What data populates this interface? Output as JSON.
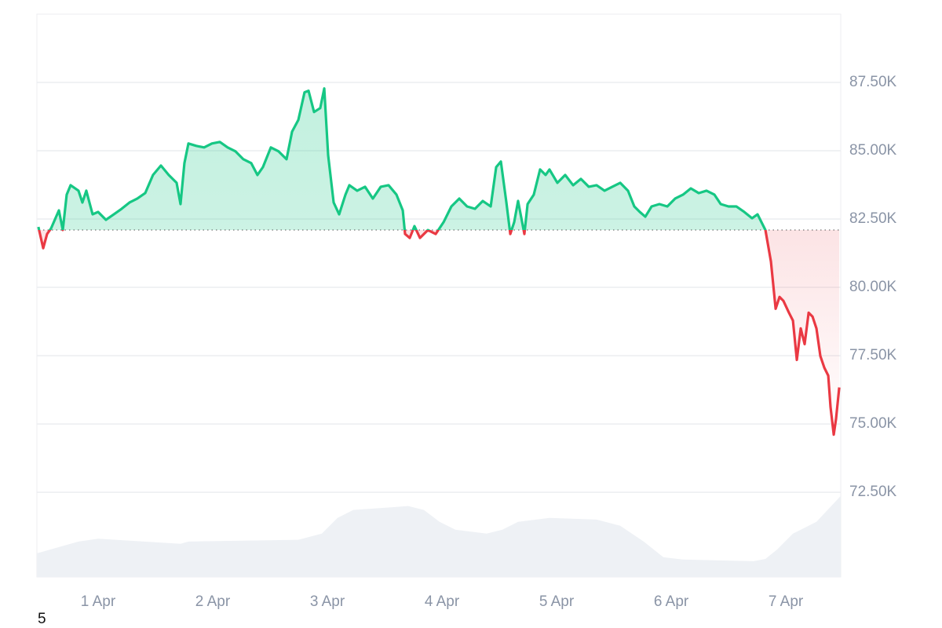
{
  "chart_data": {
    "type": "line",
    "x": [
      0.479,
      0.521,
      0.555,
      0.589,
      0.658,
      0.692,
      0.726,
      0.76,
      0.829,
      0.863,
      0.897,
      0.952,
      1,
      1.068,
      1.137,
      1.205,
      1.274,
      1.342,
      1.411,
      1.479,
      1.548,
      1.616,
      1.685,
      1.719,
      1.753,
      1.788,
      1.856,
      1.925,
      1.993,
      2.062,
      2.13,
      2.199,
      2.267,
      2.336,
      2.39,
      2.438,
      2.507,
      2.575,
      2.644,
      2.692,
      2.747,
      2.801,
      2.836,
      2.884,
      2.938,
      2.973,
      3.007,
      3.055,
      3.103,
      3.158,
      3.192,
      3.26,
      3.329,
      3.397,
      3.466,
      3.534,
      3.603,
      3.658,
      3.678,
      3.719,
      3.76,
      3.808,
      3.877,
      3.945,
      4.014,
      4.082,
      4.151,
      4.219,
      4.288,
      4.356,
      4.425,
      4.473,
      4.514,
      4.562,
      4.596,
      4.63,
      4.664,
      4.719,
      4.747,
      4.801,
      4.856,
      4.904,
      4.938,
      5.007,
      5.075,
      5.144,
      5.212,
      5.281,
      5.349,
      5.418,
      5.486,
      5.555,
      5.623,
      5.678,
      5.726,
      5.774,
      5.829,
      5.897,
      5.966,
      6.034,
      6.103,
      6.171,
      6.24,
      6.308,
      6.377,
      6.432,
      6.5,
      6.568,
      6.637,
      6.705,
      6.753,
      6.822,
      6.87,
      6.911,
      6.945,
      6.979,
      7.027,
      7.062,
      7.096,
      7.13,
      7.164,
      7.199,
      7.233,
      7.267,
      7.301,
      7.336,
      7.37,
      7.39,
      7.418,
      7.438,
      7.466
    ],
    "values": [
      82212,
      81434,
      81953,
      82154,
      82817,
      82100,
      83393,
      83738,
      83537,
      83105,
      83537,
      82673,
      82760,
      82471,
      82673,
      82874,
      83105,
      83249,
      83450,
      84113,
      84458,
      84113,
      83825,
      83047,
      84545,
      85265,
      85178,
      85121,
      85265,
      85322,
      85121,
      84977,
      84689,
      84545,
      84113,
      84401,
      85121,
      84977,
      84689,
      85697,
      86129,
      87137,
      87194,
      86417,
      86561,
      87281,
      84833,
      83105,
      82673,
      83393,
      83738,
      83537,
      83681,
      83249,
      83681,
      83738,
      83393,
      82817,
      81953,
      81809,
      82241,
      81809,
      82097,
      81953,
      82385,
      82961,
      83249,
      82961,
      82874,
      83162,
      82961,
      84401,
      84603,
      83105,
      81953,
      82385,
      83162,
      81953,
      83047,
      83393,
      84314,
      84113,
      84314,
      83825,
      84113,
      83738,
      83969,
      83681,
      83738,
      83537,
      83681,
      83825,
      83537,
      82961,
      82760,
      82586,
      82961,
      83047,
      82961,
      83249,
      83393,
      83623,
      83450,
      83537,
      83393,
      83047,
      82961,
      82961,
      82760,
      82529,
      82673,
      82097,
      80945,
      79217,
      79649,
      79505,
      79073,
      78785,
      77345,
      78497,
      77921,
      79073,
      78929,
      78497,
      77489,
      77057,
      76769,
      75617,
      74609,
      75185,
      76337
    ],
    "baseline": 82100,
    "up_color": "#16c784",
    "down_color": "#ea3943",
    "volume_x": [
      0.466,
      0.829,
      1,
      1.719,
      1.788,
      2.747,
      2.952,
      3.089,
      3.226,
      3.705,
      3.842,
      3.979,
      4.116,
      4.39,
      4.527,
      4.664,
      4.938,
      5.349,
      5.555,
      5.76,
      5.932,
      6.103,
      6.719,
      6.822,
      6.925,
      7.062,
      7.267,
      7.479
    ],
    "volume_values": [
      4.2,
      6.3,
      6.8,
      5.9,
      6.3,
      6.6,
      7.7,
      10.5,
      11.9,
      12.6,
      11.9,
      9.8,
      8.4,
      7.7,
      8.4,
      9.8,
      10.5,
      10.2,
      9.1,
      6.3,
      3.5,
      3.1,
      2.8,
      3.2,
      4.9,
      7.7,
      9.8,
      14.4
    ],
    "volume_color": "#eef1f5",
    "y2lim": [
      0,
      100
    ],
    "xlim": [
      0.466,
      7.479
    ],
    "ylim": [
      69400,
      90000
    ],
    "xticks": [
      {
        "value": 1,
        "label": "1 Apr"
      },
      {
        "value": 2,
        "label": "2 Apr"
      },
      {
        "value": 3,
        "label": "3 Apr"
      },
      {
        "value": 4,
        "label": "4 Apr"
      },
      {
        "value": 5,
        "label": "5 Apr"
      },
      {
        "value": 6,
        "label": "6 Apr"
      },
      {
        "value": 7,
        "label": "7 Apr"
      }
    ],
    "yticks": [
      {
        "value": 72500,
        "label": "72.50K"
      },
      {
        "value": 75000,
        "label": "75.00K"
      },
      {
        "value": 77500,
        "label": "77.50K"
      },
      {
        "value": 80000,
        "label": "80.00K"
      },
      {
        "value": 82500,
        "label": "82.50K"
      },
      {
        "value": 85000,
        "label": "85.00K"
      },
      {
        "value": 87500,
        "label": "87.50K"
      }
    ],
    "grid": true
  },
  "footnote": "5"
}
